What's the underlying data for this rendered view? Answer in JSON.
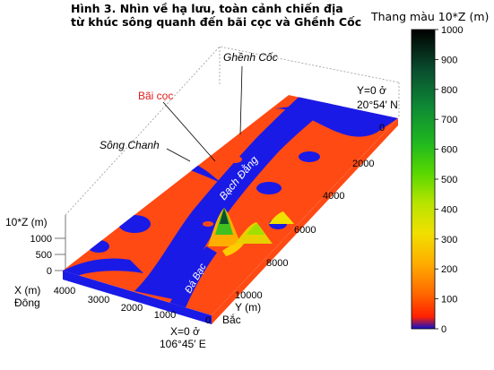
{
  "figure": {
    "title_line1": "Hình 3. Nhìn về hạ lưu, toàn cảnh chiến địa",
    "title_line2": "từ khúc sông quanh đến bãi cọc và Ghềnh Cốc"
  },
  "colorbar": {
    "title": "Thang màu 10*Z (m)",
    "ticks": [
      "1000",
      "900",
      "800",
      "700",
      "600",
      "500",
      "400",
      "300",
      "200",
      "100",
      "0"
    ],
    "range": [
      0,
      1000
    ],
    "colors": [
      "#1010c8",
      "#ff2000",
      "#ff7000",
      "#ffb000",
      "#e8e000",
      "#a0e000",
      "#40d000",
      "#10b020",
      "#0a7a30",
      "#083c24",
      "#000000"
    ]
  },
  "axes": {
    "z_label": "10*Z (m)",
    "z_ticks": [
      "1000",
      "500",
      "0"
    ],
    "x_label_line1": "X (m)",
    "x_label_line2": "Đông",
    "x_ticks": [
      "4000",
      "3000",
      "2000",
      "1000",
      "0"
    ],
    "x_origin_line1": "X=0 ở",
    "x_origin_line2": "106°45′ E",
    "y_label_line1": "Y (m)",
    "y_label_line2": "Bắc",
    "y_ticks": [
      "0",
      "2000",
      "4000",
      "6000",
      "8000",
      "10000"
    ],
    "y_origin_line1": "Y=0 ở",
    "y_origin_line2": "20°54′ N"
  },
  "annotations": {
    "ghenh_coc": "Ghềnh Cốc",
    "bai_coc": "Bãi cọc",
    "song_chanh": "Sông Chanh",
    "bach_dang": "Bạch Đằng",
    "da_bac": "Đá Bạc"
  },
  "colors": {
    "water": "#1a1ae6",
    "land": "#ff4a14",
    "accent_red": "#e02020"
  }
}
